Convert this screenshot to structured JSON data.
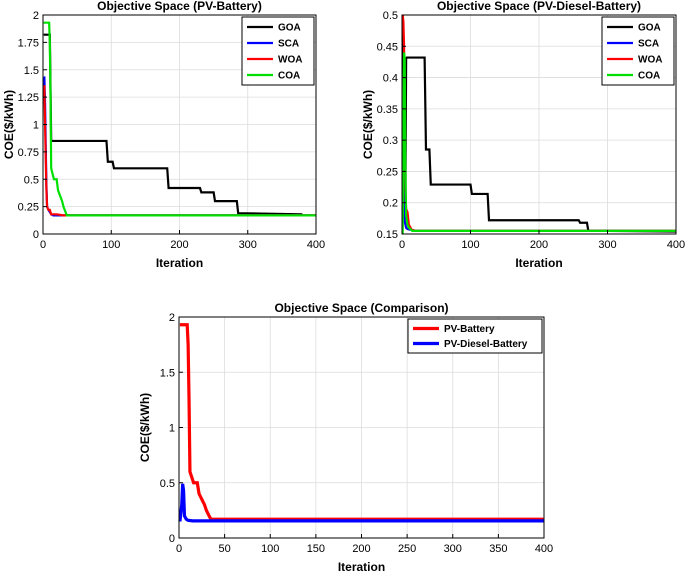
{
  "chart_data": [
    {
      "type": "line",
      "title": "Objective Space (PV-Battery)",
      "xlabel": "Iteration",
      "ylabel": "COE($/kWh)",
      "xlim": [
        0,
        400
      ],
      "ylim": [
        0,
        2
      ],
      "xticks": [
        0,
        100,
        200,
        300,
        400
      ],
      "yticks": [
        0,
        0.25,
        0.5,
        0.75,
        1,
        1.25,
        1.5,
        1.75,
        2
      ],
      "ytick_labels": [
        "0",
        "0.25",
        "0.5",
        "0.75",
        "1",
        "1.25",
        "1.5",
        "1.75",
        "2"
      ],
      "grid": true,
      "legend": "top-right",
      "series": [
        {
          "name": "GOA",
          "color": "#000000",
          "x": [
            1,
            10,
            12,
            93,
            95,
            102,
            104,
            182,
            184,
            230,
            232,
            250,
            252,
            284,
            286,
            380
          ],
          "y": [
            1.82,
            1.82,
            0.85,
            0.85,
            0.66,
            0.66,
            0.6,
            0.6,
            0.42,
            0.42,
            0.38,
            0.38,
            0.3,
            0.3,
            0.19,
            0.18
          ]
        },
        {
          "name": "SCA",
          "color": "#0000ff",
          "x": [
            1,
            2,
            3,
            4,
            5,
            6,
            8,
            10,
            12,
            15,
            20,
            400
          ],
          "y": [
            1.43,
            1.43,
            1.2,
            0.8,
            0.45,
            0.25,
            0.22,
            0.2,
            0.18,
            0.17,
            0.17,
            0.17
          ]
        },
        {
          "name": "WOA",
          "color": "#ff0000",
          "x": [
            1,
            2,
            3,
            4,
            5,
            6,
            8,
            10,
            12,
            15,
            20,
            30,
            400
          ],
          "y": [
            1.35,
            1.35,
            1.0,
            0.7,
            0.4,
            0.25,
            0.22,
            0.22,
            0.18,
            0.18,
            0.18,
            0.17,
            0.17
          ]
        },
        {
          "name": "COA",
          "color": "#00e000",
          "x": [
            1,
            9,
            10,
            11,
            12,
            14,
            16,
            18,
            20,
            22,
            25,
            28,
            30,
            33,
            35,
            400
          ],
          "y": [
            1.93,
            1.93,
            1.75,
            1.25,
            0.6,
            0.55,
            0.5,
            0.5,
            0.5,
            0.4,
            0.35,
            0.3,
            0.25,
            0.2,
            0.17,
            0.17
          ]
        }
      ]
    },
    {
      "type": "line",
      "title": "Objective Space (PV-Diesel-Battery)",
      "xlabel": "Iteration",
      "ylabel": "COE($/kWh)",
      "xlim": [
        0,
        400
      ],
      "ylim": [
        0.15,
        0.5
      ],
      "xticks": [
        0,
        100,
        200,
        300,
        400
      ],
      "yticks": [
        0.15,
        0.2,
        0.25,
        0.3,
        0.35,
        0.4,
        0.45,
        0.5
      ],
      "ytick_labels": [
        "0.15",
        "0.2",
        "0.25",
        "0.3",
        "0.35",
        "0.4",
        "0.45",
        "0.5"
      ],
      "grid": true,
      "legend": "top-right",
      "series": [
        {
          "name": "GOA",
          "color": "#000000",
          "x": [
            1,
            2,
            3,
            4,
            5,
            6,
            7,
            33,
            35,
            40,
            42,
            100,
            102,
            125,
            127,
            258,
            260,
            270,
            272,
            300,
            400
          ],
          "y": [
            0.5,
            0.45,
            0.35,
            0.25,
            0.2,
            0.43,
            0.432,
            0.432,
            0.285,
            0.285,
            0.229,
            0.229,
            0.214,
            0.214,
            0.172,
            0.172,
            0.168,
            0.168,
            0.155,
            0.155,
            0.154
          ]
        },
        {
          "name": "SCA",
          "color": "#0000ff",
          "x": [
            1,
            2,
            3,
            4,
            6,
            8,
            12,
            20,
            400
          ],
          "y": [
            0.27,
            0.27,
            0.2,
            0.17,
            0.16,
            0.158,
            0.157,
            0.155,
            0.155
          ]
        },
        {
          "name": "WOA",
          "color": "#ff0000",
          "x": [
            1,
            2,
            3,
            4,
            5,
            6,
            8,
            10,
            14,
            20,
            400
          ],
          "y": [
            0.5,
            0.49,
            0.45,
            0.3,
            0.22,
            0.19,
            0.185,
            0.165,
            0.157,
            0.155,
            0.155
          ]
        },
        {
          "name": "COA",
          "color": "#00e000",
          "x": [
            1,
            2,
            3,
            4,
            5,
            6,
            8,
            10,
            15,
            400
          ],
          "y": [
            0.15,
            0.3,
            0.44,
            0.43,
            0.25,
            0.18,
            0.165,
            0.16,
            0.155,
            0.155
          ]
        }
      ]
    },
    {
      "type": "line",
      "title": "Objective Space (Comparison)",
      "xlabel": "Iteration",
      "ylabel": "COE($/kWh)",
      "xlim": [
        0,
        400
      ],
      "ylim": [
        0,
        2
      ],
      "xticks": [
        0,
        50,
        100,
        150,
        200,
        250,
        300,
        350,
        400
      ],
      "yticks": [
        0,
        0.5,
        1,
        1.5,
        2
      ],
      "ytick_labels": [
        "0",
        "0.5",
        "1",
        "1.5",
        "2"
      ],
      "grid": true,
      "legend": "top-right",
      "series": [
        {
          "name": "PV-Battery",
          "color": "#ff0000",
          "x": [
            1,
            9,
            10,
            11,
            12,
            14,
            16,
            18,
            20,
            22,
            25,
            28,
            30,
            33,
            35,
            400
          ],
          "y": [
            1.93,
            1.93,
            1.75,
            1.25,
            0.6,
            0.55,
            0.5,
            0.5,
            0.5,
            0.4,
            0.35,
            0.3,
            0.25,
            0.2,
            0.17,
            0.17
          ]
        },
        {
          "name": "PV-Diesel-Battery",
          "color": "#0000ff",
          "x": [
            1,
            3,
            4,
            5,
            6,
            8,
            10,
            15,
            400
          ],
          "y": [
            0.15,
            0.3,
            0.49,
            0.43,
            0.2,
            0.17,
            0.16,
            0.155,
            0.155
          ]
        }
      ]
    }
  ]
}
